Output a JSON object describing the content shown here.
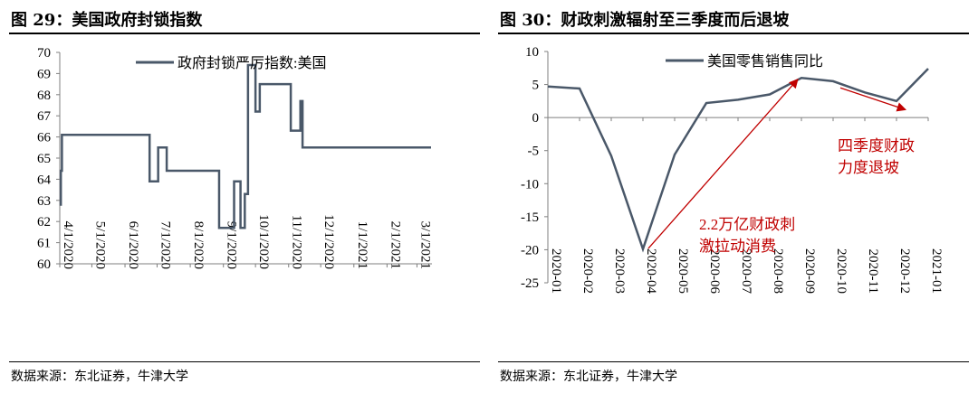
{
  "colors": {
    "series": "#4a5869",
    "annotation": "#c00000"
  },
  "left": {
    "title": "图 29：美国政府封锁指数",
    "source": "数据来源：东北证券，牛津大学"
  },
  "right": {
    "title": "图 30：财政刺激辐射至三季度而后退坡",
    "source": "数据来源：东北证券，牛津大学"
  },
  "chart_data": [
    {
      "type": "line",
      "title": "",
      "xlabel": "",
      "ylabel": "",
      "ylim": [
        60,
        70
      ],
      "yticks": [
        60,
        61,
        62,
        63,
        64,
        65,
        66,
        67,
        68,
        69,
        70
      ],
      "xlim": [
        "2020-04-01",
        "2021-03-15"
      ],
      "xticks": [
        "4/1/2020",
        "5/1/2020",
        "6/1/2020",
        "7/1/2020",
        "8/1/2020",
        "9/1/2020",
        "10/1/2020",
        "11/1/2020",
        "12/1/2020",
        "1/1/2021",
        "2/1/2021",
        "3/1/2021"
      ],
      "xtick_dates": [
        "2020-04-01",
        "2020-05-01",
        "2020-06-01",
        "2020-07-01",
        "2020-08-01",
        "2020-09-01",
        "2020-10-01",
        "2020-11-01",
        "2020-12-01",
        "2021-01-01",
        "2021-02-01",
        "2021-03-01"
      ],
      "grid": false,
      "legend": "top",
      "series": [
        {
          "name": "政府封锁严厉指数:美国",
          "step": true,
          "points": [
            [
              "2020-04-01",
              62.8
            ],
            [
              "2020-04-02",
              64.4
            ],
            [
              "2020-04-03",
              66.1
            ],
            [
              "2020-06-24",
              63.9
            ],
            [
              "2020-07-02",
              65.5
            ],
            [
              "2020-07-10",
              64.4
            ],
            [
              "2020-08-28",
              61.7
            ],
            [
              "2020-09-11",
              63.9
            ],
            [
              "2020-09-17",
              61.7
            ],
            [
              "2020-09-21",
              63.3
            ],
            [
              "2020-09-24",
              69.4
            ],
            [
              "2020-10-01",
              67.2
            ],
            [
              "2020-10-05",
              68.5
            ],
            [
              "2020-11-03",
              66.3
            ],
            [
              "2020-11-12",
              67.7
            ],
            [
              "2020-11-14",
              65.5
            ],
            [
              "2020-11-16",
              65.5
            ]
          ]
        }
      ]
    },
    {
      "type": "line",
      "title": "",
      "xlabel": "",
      "ylabel": "",
      "ylim": [
        -25,
        10
      ],
      "yticks": [
        -25,
        -20,
        -15,
        -10,
        -5,
        0,
        5,
        10
      ],
      "categories": [
        "2020-01",
        "2020-02",
        "2020-03",
        "2020-04",
        "2020-05",
        "2020-06",
        "2020-07",
        "2020-08",
        "2020-09",
        "2020-10",
        "2020-11",
        "2020-12",
        "2021-01"
      ],
      "grid": false,
      "legend": "top",
      "series": [
        {
          "name": "美国零售销售同比",
          "values": [
            4.7,
            4.4,
            -5.8,
            -19.9,
            -5.6,
            2.2,
            2.7,
            3.5,
            6.0,
            5.5,
            3.8,
            2.5,
            7.4
          ]
        }
      ],
      "annotations": [
        {
          "lines": [
            "2.2万亿财政刺",
            "激拉动消费"
          ],
          "arrow_from": [
            "2020-04",
            -19.8
          ],
          "arrow_to": [
            "2020-09",
            5.8
          ]
        },
        {
          "lines": [
            "四季度财政",
            "力度退坡"
          ],
          "arrow_from": [
            "2020-10",
            4.5
          ],
          "arrow_to": [
            "2020-12",
            1.2
          ]
        }
      ]
    }
  ]
}
